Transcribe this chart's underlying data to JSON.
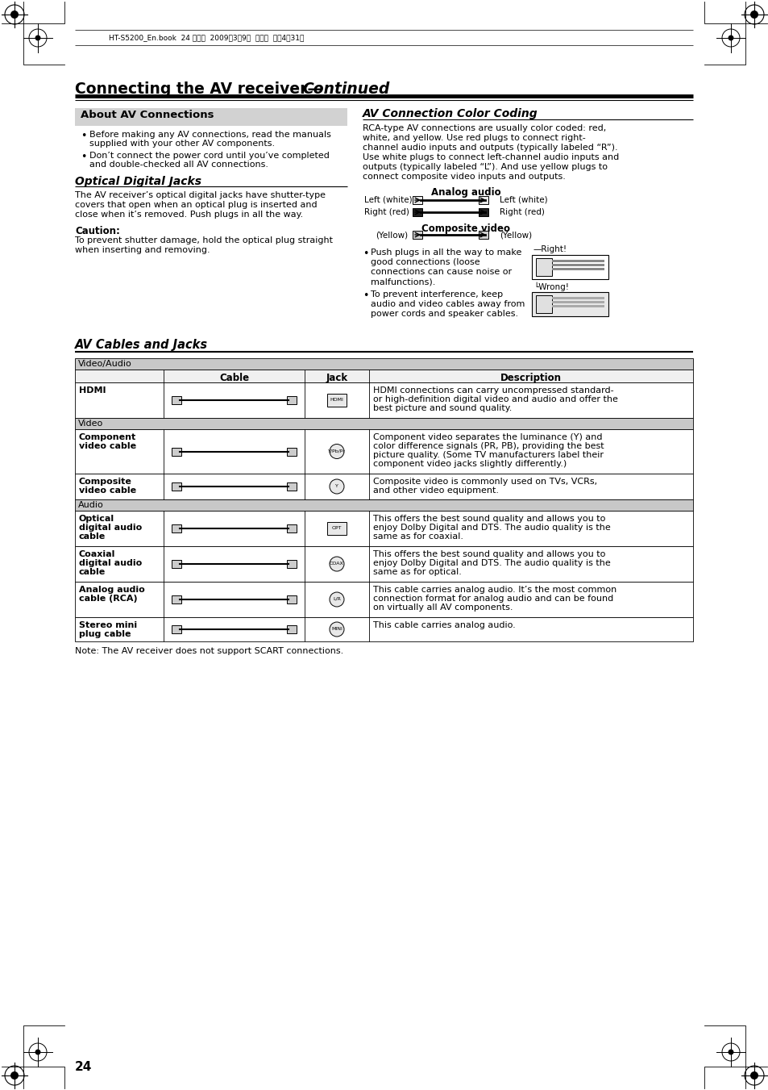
{
  "header_text": "HT-S5200_En.book  24 ページ  2009年3月9日  月曜日  午後4時31分",
  "page_title_bold": "Connecting the AV receiver—",
  "page_title_italic": "Continued",
  "about_title": "About AV Connections",
  "bullet1_line1": "Before making any AV connections, read the manuals",
  "bullet1_line2": "supplied with your other AV components.",
  "bullet2_line1": "Don’t connect the power cord until you’ve completed",
  "bullet2_line2": "and double-checked all AV connections.",
  "optical_title": "Optical Digital Jacks",
  "optical_line1": "The AV receiver’s optical digital jacks have shutter-type",
  "optical_line2": "covers that open when an optical plug is inserted and",
  "optical_line3": "close when it’s removed. Push plugs in all the way.",
  "caution_head": "Caution:",
  "caution_line1": "To prevent shutter damage, hold the optical plug straight",
  "caution_line2": "when inserting and removing.",
  "cc_title": "AV Connection Color Coding",
  "cc_line1": "RCA-type AV connections are usually color coded: red,",
  "cc_line2": "white, and yellow. Use red plugs to connect right-",
  "cc_line3": "channel audio inputs and outputs (typically labeled “R”).",
  "cc_line4": "Use white plugs to connect left-channel audio inputs and",
  "cc_line5": "outputs (typically labeled “L”). And use yellow plugs to",
  "cc_line6": "connect composite video inputs and outputs.",
  "analog_lbl": "Analog audio",
  "left_white": "Left (white)",
  "right_red": "Right (red)",
  "composite_lbl": "Composite video",
  "yellow_lbl": "(Yellow)",
  "bullet_r1": "Push plugs in all the way to make",
  "bullet_r2": "good connections (loose",
  "bullet_r3": "connections can cause noise or",
  "bullet_r4": "malfunctions).",
  "bullet_r5": "To prevent interference, keep",
  "bullet_r6": "audio and video cables away from",
  "bullet_r7": "power cords and speaker cables.",
  "right_lbl": "—Right!",
  "wrong_lbl": "└Wrong!",
  "av_cables_title": "AV Cables and Jacks",
  "sec_va": "Video/Audio",
  "sec_v": "Video",
  "sec_a": "Audio",
  "col_cable": "Cable",
  "col_jack": "Jack",
  "col_desc": "Description",
  "r1_name": "HDMI",
  "r1_d1": "HDMI connections can carry uncompressed standard-",
  "r1_d2": "or high-definition digital video and audio and offer the",
  "r1_d3": "best picture and sound quality.",
  "r2_name": "Component\nvideo cable",
  "r2_d1": "Component video separates the luminance (Y) and",
  "r2_d2": "color difference signals (PR, PB), providing the best",
  "r2_d3": "picture quality. (Some TV manufacturers label their",
  "r2_d4": "component video jacks slightly differently.)",
  "r3_name": "Composite\nvideo cable",
  "r3_d1": "Composite video is commonly used on TVs, VCRs,",
  "r3_d2": "and other video equipment.",
  "r4_name": "Optical\ndigital audio\ncable",
  "r4_d1": "This offers the best sound quality and allows you to",
  "r4_d2": "enjoy Dolby Digital and DTS. The audio quality is the",
  "r4_d3": "same as for coaxial.",
  "r5_name": "Coaxial\ndigital audio\ncable",
  "r5_d1": "This offers the best sound quality and allows you to",
  "r5_d2": "enjoy Dolby Digital and DTS. The audio quality is the",
  "r5_d3": "same as for optical.",
  "r6_name": "Analog audio\ncable (RCA)",
  "r6_d1": "This cable carries analog audio. It’s the most common",
  "r6_d2": "connection format for analog audio and can be found",
  "r6_d3": "on virtually all AV components.",
  "r7_name": "Stereo mini\nplug cable",
  "r7_d1": "This cable carries analog audio.",
  "note": "Note: The AV receiver does not support SCART connections.",
  "page_num": "24",
  "gray_sec": "#c8c8c8",
  "gray_box": "#d2d2d2",
  "white": "#ffffff",
  "black": "#000000"
}
